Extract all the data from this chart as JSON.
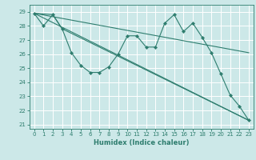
{
  "xlabel": "Humidex (Indice chaleur)",
  "background_color": "#cce8e8",
  "grid_color": "#ffffff",
  "line_color": "#2e7d6e",
  "xlim": [
    -0.5,
    23.5
  ],
  "ylim": [
    20.7,
    29.5
  ],
  "yticks": [
    21,
    22,
    23,
    24,
    25,
    26,
    27,
    28,
    29
  ],
  "xticks": [
    0,
    1,
    2,
    3,
    4,
    5,
    6,
    7,
    8,
    9,
    10,
    11,
    12,
    13,
    14,
    15,
    16,
    17,
    18,
    19,
    20,
    21,
    22,
    23
  ],
  "lines": [
    {
      "x": [
        0,
        1,
        2,
        3,
        4,
        5,
        6,
        7,
        8,
        9,
        10,
        11,
        12,
        13,
        14,
        15,
        16,
        17,
        18,
        19,
        20,
        21,
        22,
        23
      ],
      "y": [
        28.9,
        28.0,
        28.8,
        27.8,
        26.1,
        25.2,
        24.7,
        24.7,
        25.1,
        26.0,
        27.3,
        27.3,
        26.5,
        26.5,
        28.2,
        28.8,
        27.6,
        28.2,
        27.2,
        26.1,
        24.6,
        23.1,
        22.3,
        21.3
      ],
      "has_markers": true
    },
    {
      "x": [
        0,
        2,
        3,
        23
      ],
      "y": [
        28.9,
        28.8,
        27.8,
        21.3
      ],
      "has_markers": false
    },
    {
      "x": [
        0,
        23
      ],
      "y": [
        28.9,
        26.1
      ],
      "has_markers": false
    },
    {
      "x": [
        0,
        23
      ],
      "y": [
        28.9,
        21.3
      ],
      "has_markers": false
    }
  ]
}
